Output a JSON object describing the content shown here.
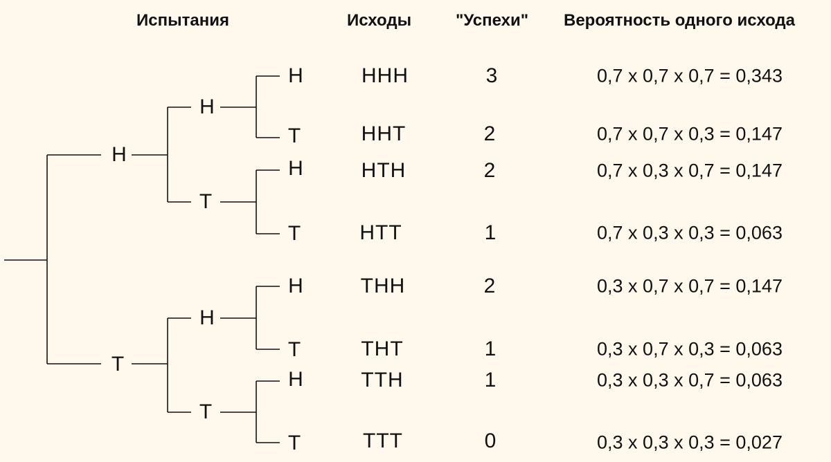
{
  "headers": {
    "trials": "Испытания",
    "outcomes": "Исходы",
    "successes": "\"Успехи\"",
    "probability": "Вероятность одного исхода"
  },
  "tree": {
    "level1": [
      "Н",
      "Т"
    ],
    "level2": [
      "Н",
      "Т",
      "Н",
      "Т"
    ],
    "level3": [
      "Н",
      "Т",
      "Н",
      "Т",
      "Н",
      "Т",
      "Н",
      "Т"
    ]
  },
  "rows": [
    {
      "outcome": "ННН",
      "successes": "3",
      "probability": "0,7 х 0,7 х 0,7 = 0,343"
    },
    {
      "outcome": "ННТ",
      "successes": "2",
      "probability": "0,7 х 0,7 х 0,3 = 0,147"
    },
    {
      "outcome": "НТН",
      "successes": "2",
      "probability": "0,7 х 0,3 х 0,7 = 0,147"
    },
    {
      "outcome": "НТТ",
      "successes": "1",
      "probability": "0,7 х 0,3 х 0,3 = 0,063"
    },
    {
      "outcome": "ТНН",
      "successes": "2",
      "probability": "0,3 х 0,7 х 0,7 = 0,147"
    },
    {
      "outcome": "ТНТ",
      "successes": "1",
      "probability": "0,3 х 0,7 х 0,3 = 0,063"
    },
    {
      "outcome": "ТТН",
      "successes": "1",
      "probability": "0,3 х 0,3 х 0,7 = 0,063"
    },
    {
      "outcome": "ТТТ",
      "successes": "0",
      "probability": "0,3 х 0,3 х 0,3 = 0,027"
    }
  ],
  "colors": {
    "background": "#fff8ec",
    "ink": "#111111"
  }
}
